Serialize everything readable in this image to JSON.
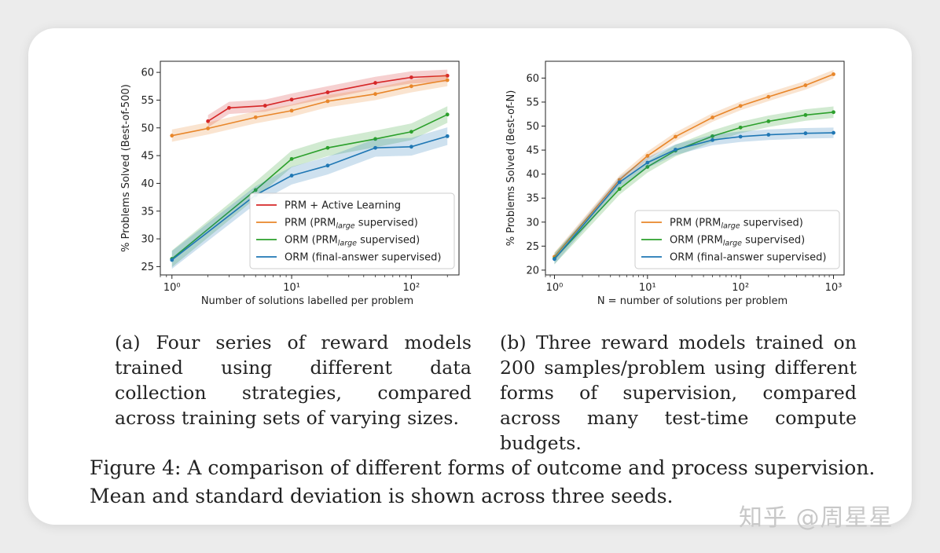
{
  "chart_data": [
    {
      "type": "line",
      "id": "a",
      "xscale": "log",
      "xlim": [
        0.8,
        250
      ],
      "ylim": [
        23.5,
        62
      ],
      "xticks": [
        {
          "v": 1,
          "label": "10⁰"
        },
        {
          "v": 10,
          "label": "10¹"
        },
        {
          "v": 100,
          "label": "10²"
        }
      ],
      "yticks": [
        25,
        30,
        35,
        40,
        45,
        50,
        55,
        60
      ],
      "xlabel": "Number of solutions labelled per problem",
      "ylabel": "% Problems Solved (Best-of-500)",
      "legend_position": "lower-right",
      "series": [
        {
          "name": "PRM + Active Learning",
          "color": "#d62728",
          "x": [
            2,
            3,
            6,
            10,
            20,
            50,
            100,
            200
          ],
          "y": [
            51.2,
            53.6,
            54.0,
            55.1,
            56.4,
            58.1,
            59.1,
            59.4
          ],
          "band": 1.1
        },
        {
          "name": "PRM (PRM",
          "sub": "large",
          "suffix": " supervised)",
          "color": "#e8862a",
          "x": [
            1,
            2,
            5,
            10,
            20,
            50,
            100,
            200
          ],
          "y": [
            48.6,
            49.9,
            51.9,
            53.1,
            54.8,
            56.1,
            57.5,
            58.6
          ],
          "band": 1.1
        },
        {
          "name": "ORM (PRM",
          "sub": "large",
          "suffix": " supervised)",
          "color": "#2ca02c",
          "x": [
            1,
            5,
            10,
            20,
            50,
            100,
            200
          ],
          "y": [
            26.4,
            38.8,
            44.4,
            46.4,
            48.0,
            49.3,
            52.4
          ],
          "band": 1.5
        },
        {
          "name": "ORM (final-answer supervised)",
          "color": "#1f77b4",
          "x": [
            1,
            5,
            10,
            20,
            50,
            100,
            200
          ],
          "y": [
            26.2,
            37.9,
            41.4,
            43.2,
            46.4,
            46.6,
            48.5
          ],
          "band": 1.6
        }
      ]
    },
    {
      "type": "line",
      "id": "b",
      "xscale": "log",
      "xlim": [
        0.8,
        1300
      ],
      "ylim": [
        19,
        63.5
      ],
      "xticks": [
        {
          "v": 1,
          "label": "10⁰"
        },
        {
          "v": 10,
          "label": "10¹"
        },
        {
          "v": 100,
          "label": "10²"
        },
        {
          "v": 1000,
          "label": "10³"
        }
      ],
      "yticks": [
        20,
        25,
        30,
        35,
        40,
        45,
        50,
        55,
        60
      ],
      "xlabel": "N = number of solutions per problem",
      "ylabel": "% Problems Solved (Best-of-N)",
      "legend_position": "lower-right",
      "series": [
        {
          "name": "PRM (PRM",
          "sub": "large",
          "suffix": " supervised)",
          "color": "#e8862a",
          "x": [
            1,
            5,
            10,
            20,
            50,
            100,
            200,
            500,
            1000
          ],
          "y": [
            22.8,
            38.8,
            43.8,
            47.8,
            51.8,
            54.2,
            56.1,
            58.5,
            60.8
          ],
          "band": 0.9
        },
        {
          "name": "ORM (PRM",
          "sub": "large",
          "suffix": " supervised)",
          "color": "#2ca02c",
          "x": [
            1,
            5,
            10,
            20,
            50,
            100,
            200,
            500,
            1000
          ],
          "y": [
            22.4,
            36.9,
            41.5,
            44.9,
            47.9,
            49.7,
            51.0,
            52.3,
            52.9
          ],
          "band": 1.2
        },
        {
          "name": "ORM (final-answer supervised)",
          "color": "#1f77b4",
          "x": [
            1,
            5,
            10,
            20,
            50,
            100,
            200,
            500,
            1000
          ],
          "y": [
            22.3,
            38.3,
            42.4,
            45.1,
            47.1,
            47.8,
            48.2,
            48.5,
            48.6
          ],
          "band": 1.1
        }
      ]
    }
  ],
  "captions": {
    "a": "(a) Four series of reward models trained using different data collection strategies, compared across training sets of varying sizes.",
    "b": "(b) Three reward models trained on 200 samples/problem using different forms of supervision, compared across many test-time compute budgets.",
    "figure": "Figure 4: A comparison of different forms of outcome and process supervision. Mean and standard deviation is shown across three seeds."
  },
  "watermark": "知乎 @周星星"
}
